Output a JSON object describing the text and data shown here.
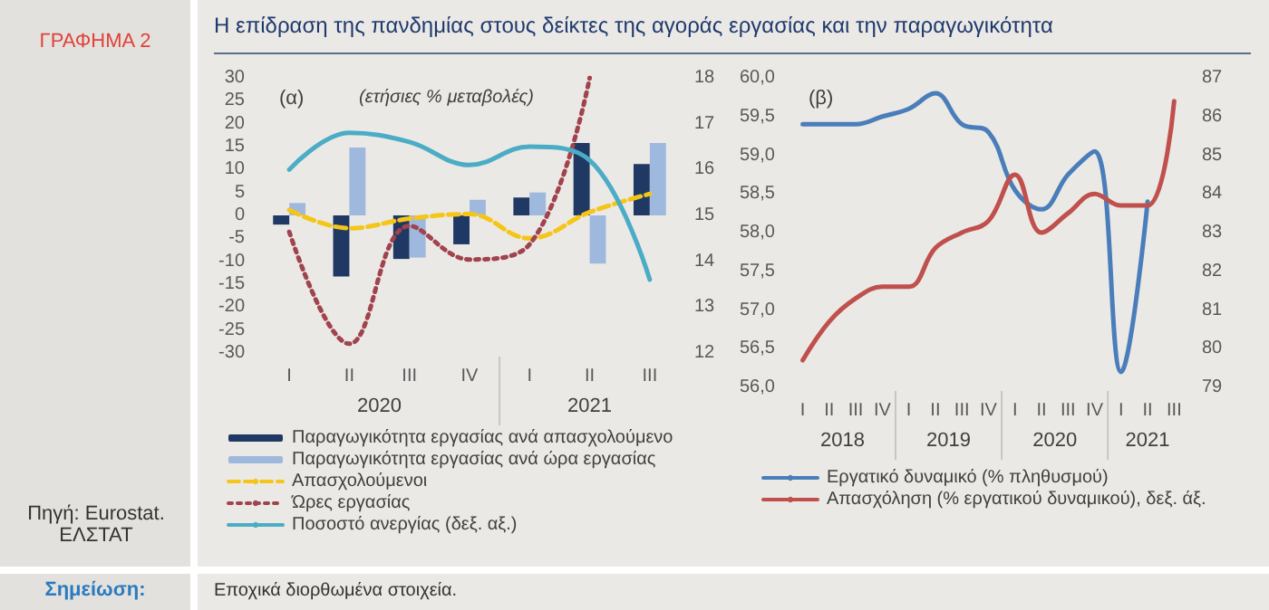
{
  "chart_data": [
    {
      "type": "other",
      "title": "ΓΡΑΦΗΜΑ 2",
      "subtitle": "Η επίδραση της πανδημίας στους δείκτες της αγοράς εργασίας και την παραγωγικότητα",
      "annotations": [
        "Πηγή: Eurostat. ΕΛΣΤΑΤ",
        "Σημείωση:",
        "Εποχικά διορθωμένα στοιχεία."
      ]
    },
    {
      "type": "bar",
      "subtitle": "(α)",
      "ylabel": "(ετήσιες % μεταβολές)",
      "categories": [
        "I",
        "II",
        "III",
        "IV",
        "I",
        "II",
        "III"
      ],
      "annotations": [
        "2020",
        "2021"
      ],
      "ylim": [
        -30,
        30
      ],
      "yticks": [
        -30,
        -25,
        -20,
        -15,
        -10,
        -5,
        0,
        5,
        10,
        15,
        20,
        25,
        30
      ],
      "y2lim": [
        12,
        18
      ],
      "y2ticks": [
        12,
        13,
        14,
        15,
        16,
        17,
        18
      ],
      "grid": false,
      "legend": "bottom",
      "marker": "none",
      "series": [
        {
          "name": "Παραγωγικότητα εργασίας ανά απασχολούμενο",
          "type": "bar",
          "color": "#1f3864",
          "values": [
            -2,
            -13.3,
            -9.5,
            -6.3,
            3.9,
            15.8,
            11.2
          ]
        },
        {
          "name": "Παραγωγικότητα εργασίας ανά ώρα εργασίας",
          "type": "bar",
          "color": "#9fb8de",
          "values": [
            2.7,
            14.8,
            -9.2,
            3.4,
            5,
            -10.5,
            15.8
          ]
        },
        {
          "name": "Απασχολούμενοι",
          "type": "line",
          "line_style": "dashed",
          "color": "#f5c518",
          "values": [
            1.2,
            -2.8,
            -0.7,
            0.3,
            -5,
            0.7,
            4.7
          ]
        },
        {
          "name": "Ώρες εργασίας",
          "type": "line",
          "line_style": "dotted",
          "color": "#a0434e",
          "values": [
            -3.6,
            -28,
            -2.3,
            -9.6,
            -6.3,
            30,
            null
          ]
        },
        {
          "name": "Ποσοστό ανεργίας (δεξ. αξ.)",
          "type": "line",
          "line_style": "solid",
          "axis": "y2",
          "color": "#4bacc6",
          "values": [
            16.0,
            16.8,
            16.6,
            16.1,
            16.5,
            16.2,
            13.6
          ]
        }
      ]
    },
    {
      "type": "line",
      "subtitle": "(β)",
      "categories": [
        "I",
        "II",
        "III",
        "IV",
        "I",
        "II",
        "III",
        "IV",
        "I",
        "II",
        "III",
        "IV",
        "I",
        "II",
        "III"
      ],
      "annotations": [
        "2018",
        "2019",
        "2020",
        "2021"
      ],
      "ylim": [
        56,
        60
      ],
      "yticks": [
        {
          "value": 56,
          "label": "56,0"
        },
        {
          "value": 56.5,
          "label": "56,5"
        },
        {
          "value": 57,
          "label": "57,0"
        },
        {
          "value": 57.5,
          "label": "57,5"
        },
        {
          "value": 58,
          "label": "58,0"
        },
        {
          "value": 58.5,
          "label": "58,5"
        },
        {
          "value": 59,
          "label": "59,0"
        },
        {
          "value": 59.5,
          "label": "59,5"
        },
        {
          "value": 60,
          "label": "60,0"
        }
      ],
      "y2lim": [
        79,
        87
      ],
      "y2ticks": [
        79,
        80,
        81,
        82,
        83,
        84,
        85,
        86,
        87
      ],
      "grid": false,
      "legend": "bottom",
      "marker": "none",
      "line_style": "solid",
      "series": [
        {
          "name": "Εργατικό δυναμικό (% πληθυσμού)",
          "color": "#4a7ebb",
          "values": [
            59.4,
            59.4,
            59.4,
            59.5,
            59.6,
            59.8,
            59.4,
            59.3,
            58.55,
            58.3,
            58.75,
            59.05,
            56.2,
            58.4,
            null
          ]
        },
        {
          "name": "Απασχόληση (% εργατικού δυναμικού), δεξ. άξ.",
          "axis": "y2",
          "color": "#c0504d",
          "values": [
            79.7,
            80.7,
            81.3,
            81.6,
            81.6,
            82.6,
            83.0,
            83.3,
            84.5,
            83.0,
            83.5,
            84.0,
            83.7,
            83.7,
            86.4
          ]
        }
      ]
    }
  ]
}
